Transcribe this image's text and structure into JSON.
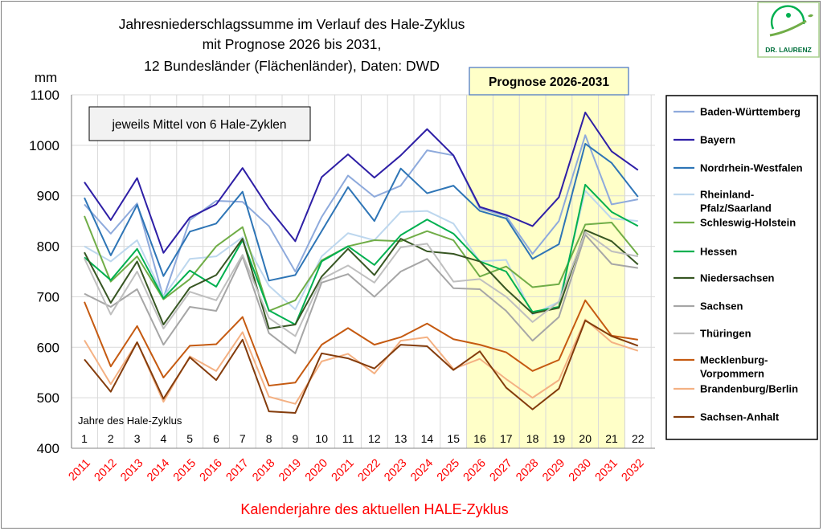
{
  "chart_data": {
    "type": "line",
    "title": [
      "Jahresniederschlagssumme  im Verlauf des Hale-Zyklus",
      "mit Prognose 2026 bis 2031,",
      "12 Bundesländer  (Flächenländer), Daten: DWD"
    ],
    "unit_label": "mm",
    "ylim": [
      400,
      1100
    ],
    "yticks": [
      400,
      500,
      600,
      700,
      800,
      900,
      1000,
      1100
    ],
    "cycle_label": "Jahre des Hale-Zyklus",
    "cycle_years": [
      "1",
      "2",
      "3",
      "4",
      "5",
      "6",
      "7",
      "8",
      "9",
      "10",
      "11",
      "12",
      "13",
      "14",
      "15",
      "16",
      "17",
      "18",
      "19",
      "20",
      "21",
      "22"
    ],
    "categories": [
      "2011",
      "2012",
      "2013",
      "2014",
      "2015",
      "2016",
      "2017",
      "2018",
      "2019",
      "2020",
      "2021",
      "2022",
      "2023",
      "2024",
      "2025",
      "2026",
      "2027",
      "2028",
      "2029",
      "2030",
      "2031",
      "2032"
    ],
    "xlabel": "Kalenderjahre des aktuellen HALE-Zyklus",
    "note": "jeweils Mittel von 6 Hale-Zyklen",
    "forecast_label": "Prognose 2026-2031",
    "forecast_range": [
      "2026",
      "2032"
    ],
    "colors": {
      "forecast_fill": "#ffffc8",
      "xlabel": "#ff0000",
      "box_border": "#4472c4"
    },
    "series": [
      {
        "name": "Baden-Württemberg",
        "color": "#8eaadc",
        "values": [
          883,
          825,
          885,
          698,
          852,
          890,
          888,
          840,
          750,
          858,
          940,
          898,
          920,
          990,
          980,
          875,
          860,
          785,
          850,
          1020,
          883,
          893
        ]
      },
      {
        "name": "Bayern",
        "color": "#2e1fa6",
        "values": [
          927,
          852,
          935,
          787,
          857,
          883,
          955,
          875,
          810,
          937,
          982,
          936,
          980,
          1032,
          980,
          878,
          862,
          840,
          897,
          1065,
          988,
          951
        ]
      },
      {
        "name": "Nordrhein-Westfalen",
        "color": "#2e75b6",
        "values": [
          896,
          782,
          882,
          741,
          829,
          845,
          908,
          732,
          743,
          830,
          917,
          850,
          954,
          905,
          920,
          870,
          855,
          775,
          804,
          1003,
          965,
          898
        ]
      },
      {
        "name": "Rheinland-Pfalz/Saarland",
        "color": "#bdd7ee",
        "values": [
          800,
          770,
          812,
          700,
          775,
          780,
          818,
          722,
          675,
          780,
          826,
          812,
          868,
          870,
          845,
          770,
          773,
          665,
          690,
          910,
          855,
          850
        ]
      },
      {
        "name": "Schleswig-Holstein",
        "color": "#70ad47",
        "values": [
          860,
          730,
          780,
          695,
          735,
          800,
          838,
          672,
          693,
          772,
          800,
          812,
          810,
          830,
          812,
          740,
          760,
          719,
          725,
          843,
          847,
          783
        ]
      },
      {
        "name": "Hessen",
        "color": "#00b050",
        "values": [
          778,
          733,
          795,
          697,
          752,
          720,
          812,
          673,
          645,
          770,
          800,
          763,
          822,
          853,
          825,
          770,
          750,
          670,
          680,
          922,
          868,
          840
        ]
      },
      {
        "name": "Niedersachsen",
        "color": "#375623",
        "values": [
          788,
          688,
          770,
          645,
          718,
          743,
          815,
          637,
          645,
          740,
          795,
          743,
          815,
          790,
          785,
          770,
          715,
          667,
          678,
          832,
          810,
          764
        ]
      },
      {
        "name": "Sachsen",
        "color": "#a6a6a6",
        "values": [
          706,
          680,
          715,
          605,
          680,
          672,
          780,
          628,
          588,
          728,
          745,
          700,
          750,
          775,
          717,
          715,
          672,
          613,
          660,
          823,
          765,
          757
        ]
      },
      {
        "name": "Thüringen",
        "color": "#bfbfbf",
        "values": [
          776,
          665,
          750,
          637,
          710,
          693,
          783,
          658,
          622,
          735,
          762,
          728,
          798,
          805,
          730,
          735,
          700,
          650,
          690,
          828,
          790,
          780
        ]
      },
      {
        "name": "Mecklenburg-Vorpommern",
        "color": "#c55a11",
        "values": [
          690,
          562,
          642,
          540,
          603,
          606,
          660,
          524,
          530,
          605,
          638,
          605,
          620,
          647,
          616,
          605,
          590,
          553,
          575,
          693,
          623,
          615
        ]
      },
      {
        "name": "Brandenburg/Berlin",
        "color": "#f4b183",
        "values": [
          614,
          527,
          610,
          492,
          582,
          553,
          630,
          502,
          488,
          572,
          587,
          548,
          613,
          620,
          557,
          577,
          537,
          500,
          535,
          655,
          610,
          593
        ]
      },
      {
        "name": "Sachsen-Anhalt",
        "color": "#843c0c",
        "values": [
          576,
          512,
          610,
          498,
          580,
          535,
          615,
          473,
          470,
          588,
          578,
          558,
          605,
          602,
          555,
          592,
          520,
          477,
          518,
          653,
          622,
          603
        ]
      }
    ],
    "legend_position": "right"
  },
  "logo": {
    "text": "DR. LAURENZ"
  }
}
